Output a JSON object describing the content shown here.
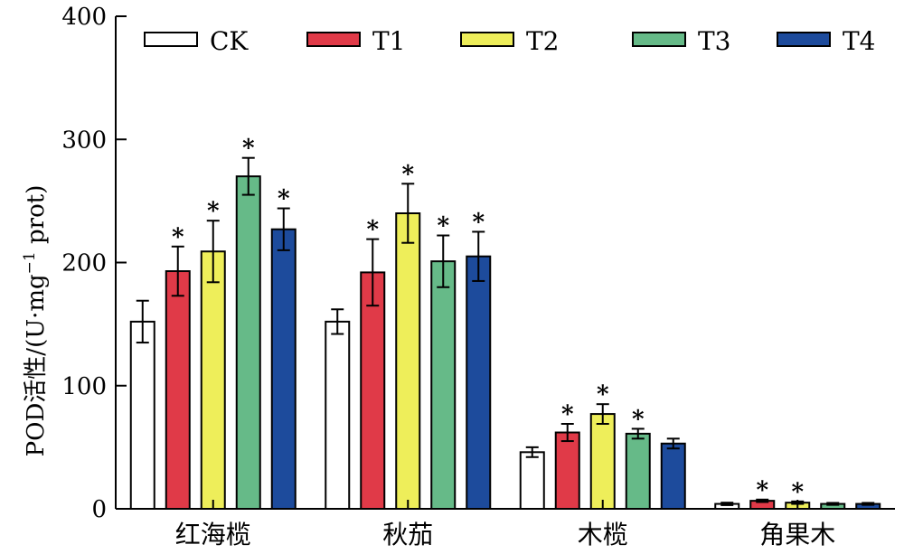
{
  "chart_data": {
    "type": "bar",
    "title": "",
    "xlabel": "",
    "ylabel": {
      "prefix": "POD活性/(U·mg",
      "sup": "−1",
      "suffix": " prot)"
    },
    "ylim": [
      0,
      400
    ],
    "yticks": [
      0,
      100,
      200,
      300,
      400
    ],
    "categories": [
      "红海榄",
      "秋茄",
      "木榄",
      "角果木"
    ],
    "legend_position": "top",
    "series": [
      {
        "name": "CK",
        "color": "#ffffff",
        "values": [
          152,
          152,
          46,
          4
        ],
        "errors": [
          17,
          10,
          4,
          1
        ],
        "significant": [
          false,
          false,
          false,
          false
        ]
      },
      {
        "name": "T1",
        "color": "#e03a48",
        "values": [
          193,
          192,
          62,
          6.5
        ],
        "errors": [
          20,
          27,
          7,
          1
        ],
        "significant": [
          true,
          true,
          true,
          true
        ]
      },
      {
        "name": "T2",
        "color": "#eeee5a",
        "values": [
          209,
          240,
          77,
          5
        ],
        "errors": [
          25,
          24,
          8,
          1
        ],
        "significant": [
          true,
          true,
          true,
          true
        ]
      },
      {
        "name": "T3",
        "color": "#66ba88",
        "values": [
          270,
          201,
          61,
          4
        ],
        "errors": [
          15,
          21,
          4,
          0.8
        ],
        "significant": [
          true,
          true,
          true,
          false
        ]
      },
      {
        "name": "T4",
        "color": "#1d4b9c",
        "values": [
          227,
          205,
          53,
          4
        ],
        "errors": [
          17,
          20,
          4,
          0.8
        ],
        "significant": [
          true,
          true,
          false,
          false
        ]
      }
    ],
    "significance_marker": "*"
  }
}
